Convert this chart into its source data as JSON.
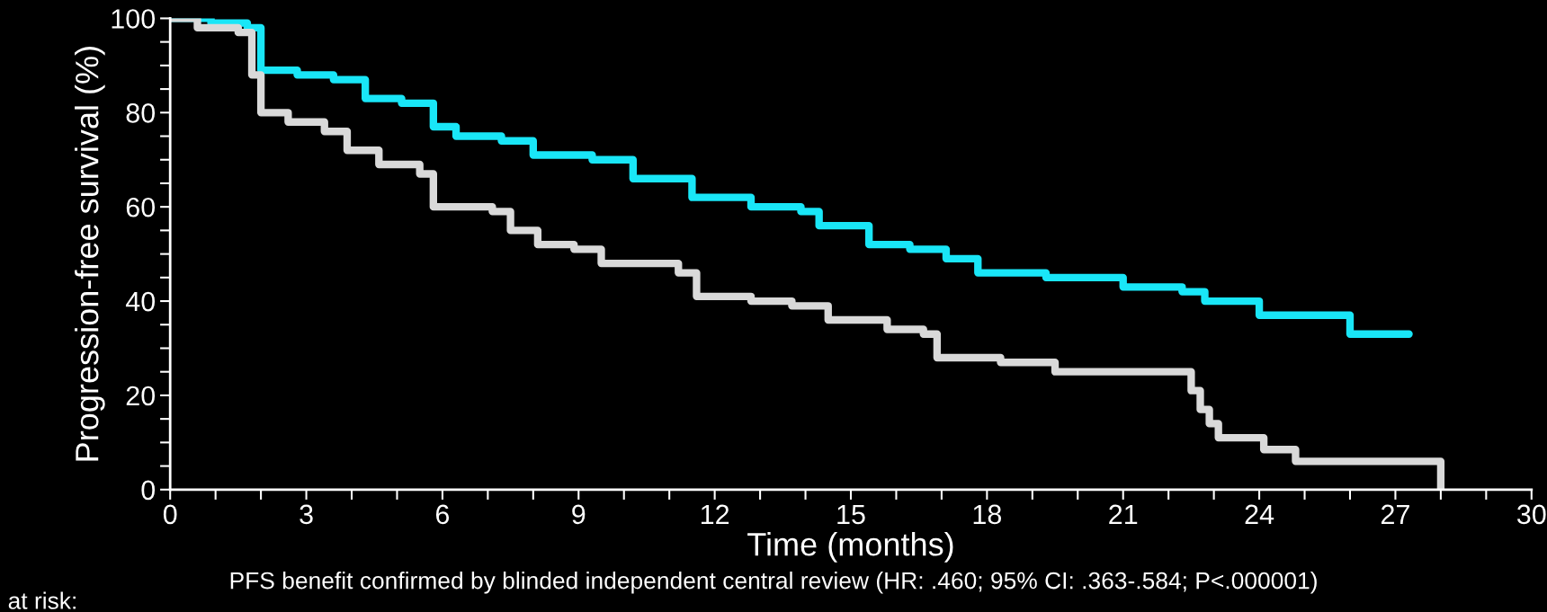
{
  "chart_data": {
    "type": "step",
    "xlabel": "Time (months)",
    "ylabel": "Progression-free survival (%)",
    "annotations": [
      "PFS benefit confirmed by blinded independent central review (HR: .460; 95% CI: .363-.584; P<.000001)",
      "at risk:"
    ],
    "xlim": [
      0,
      30
    ],
    "ylim": [
      0,
      100
    ],
    "xticks": [
      0,
      {
        "value": 1,
        "label": null
      },
      {
        "value": 2,
        "label": null
      },
      3,
      {
        "value": 4,
        "label": null
      },
      {
        "value": 5,
        "label": null
      },
      6,
      {
        "value": 7,
        "label": null
      },
      {
        "value": 8,
        "label": null
      },
      9,
      {
        "value": 10,
        "label": null
      },
      {
        "value": 11,
        "label": null
      },
      12,
      {
        "value": 13,
        "label": null
      },
      {
        "value": 14,
        "label": null
      },
      15,
      {
        "value": 16,
        "label": null
      },
      {
        "value": 17,
        "label": null
      },
      18,
      {
        "value": 19,
        "label": null
      },
      {
        "value": 20,
        "label": null
      },
      21,
      {
        "value": 22,
        "label": null
      },
      {
        "value": 23,
        "label": null
      },
      24,
      {
        "value": 25,
        "label": null
      },
      {
        "value": 26,
        "label": null
      },
      27,
      {
        "value": 28,
        "label": null
      },
      {
        "value": 29,
        "label": null
      },
      30
    ],
    "yticks": [
      0,
      {
        "value": 5,
        "label": null
      },
      {
        "value": 10,
        "label": null
      },
      {
        "value": 15,
        "label": null
      },
      20,
      {
        "value": 25,
        "label": null
      },
      {
        "value": 30,
        "label": null
      },
      {
        "value": 35,
        "label": null
      },
      40,
      {
        "value": 45,
        "label": null
      },
      {
        "value": 50,
        "label": null
      },
      {
        "value": 55,
        "label": null
      },
      60,
      {
        "value": 65,
        "label": null
      },
      {
        "value": 70,
        "label": null
      },
      {
        "value": 75,
        "label": null
      },
      80,
      {
        "value": 85,
        "label": null
      },
      {
        "value": 90,
        "label": null
      },
      {
        "value": 95,
        "label": null
      },
      100
    ],
    "grid": false,
    "legend": false,
    "marker": "none",
    "line_style": "solid",
    "series": [
      {
        "color": "#19e6f7",
        "x": [
          0,
          0.9,
          1.7,
          2.0,
          2.8,
          3.6,
          4.3,
          5.1,
          5.8,
          6.3,
          7.3,
          8.0,
          9.3,
          10.2,
          11.5,
          12.8,
          13.9,
          14.3,
          15.4,
          16.3,
          17.1,
          17.8,
          19.3,
          21.0,
          22.3,
          22.8,
          24.0,
          26.0,
          27.3
        ],
        "values": [
          100,
          99,
          98,
          89,
          88,
          87,
          83,
          82,
          77,
          75,
          74,
          71,
          70,
          66,
          62,
          60,
          59,
          56,
          52,
          51,
          49,
          46,
          45,
          43,
          42,
          40,
          37,
          33,
          33
        ]
      },
      {
        "color": "#d9d9d9",
        "x": [
          0,
          0.6,
          1.5,
          1.8,
          2.0,
          2.6,
          3.4,
          3.9,
          4.6,
          5.5,
          5.8,
          7.1,
          7.5,
          8.1,
          8.9,
          9.5,
          11.2,
          11.6,
          12.8,
          13.7,
          14.5,
          15.8,
          16.6,
          16.9,
          18.3,
          19.5,
          22.5,
          22.7,
          22.9,
          23.1,
          23.2,
          24.1,
          24.8,
          28.0
        ],
        "values": [
          100,
          98,
          97,
          88,
          80,
          78,
          76,
          72,
          69,
          67,
          60,
          59,
          55,
          52,
          51,
          48,
          46,
          41,
          40,
          39,
          36,
          34,
          33,
          28,
          27,
          25,
          21,
          17,
          14,
          11,
          11,
          8.5,
          6,
          0
        ]
      }
    ]
  }
}
